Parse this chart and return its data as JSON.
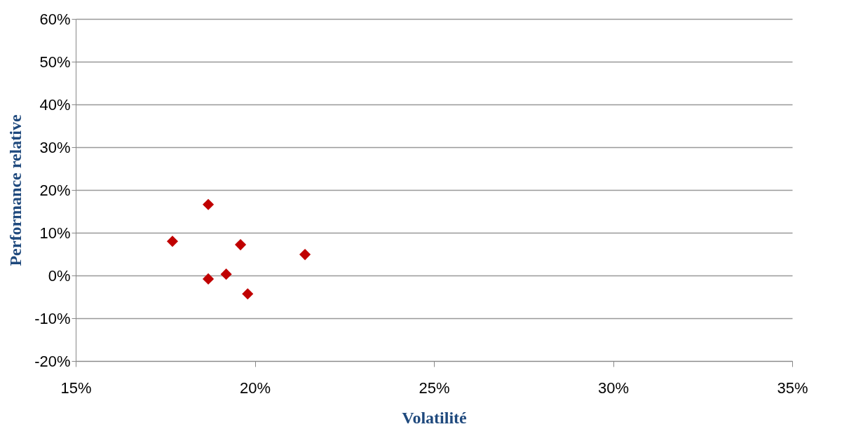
{
  "chart_data": {
    "type": "scatter",
    "xlabel": "Volatilité",
    "ylabel": "Performance relative",
    "x": [
      17.7,
      18.7,
      18.7,
      19.2,
      19.6,
      19.8,
      21.4
    ],
    "series": [
      {
        "color": "#c00000",
        "values": [
          8.0,
          16.6,
          -0.8,
          0.3,
          7.2,
          -4.3,
          4.9
        ]
      }
    ],
    "marker": "diamond",
    "grid": "y",
    "legend": false,
    "xlim": [
      15,
      35
    ],
    "xticks": [
      {
        "value": 15,
        "label": "15%"
      },
      {
        "value": 20,
        "label": "20%"
      },
      {
        "value": 25,
        "label": "25%"
      },
      {
        "value": 30,
        "label": "30%"
      },
      {
        "value": 35,
        "label": "35%"
      }
    ],
    "ylim": [
      -20,
      60
    ],
    "yticks": [
      {
        "value": -20,
        "label": "-20%"
      },
      {
        "value": -10,
        "label": "-10%"
      },
      {
        "value": 0,
        "label": "0%"
      },
      {
        "value": 10,
        "label": "10%"
      },
      {
        "value": 20,
        "label": "20%"
      },
      {
        "value": 30,
        "label": "30%"
      },
      {
        "value": 40,
        "label": "40%"
      },
      {
        "value": 50,
        "label": "50%"
      },
      {
        "value": 60,
        "label": "60%"
      }
    ]
  }
}
